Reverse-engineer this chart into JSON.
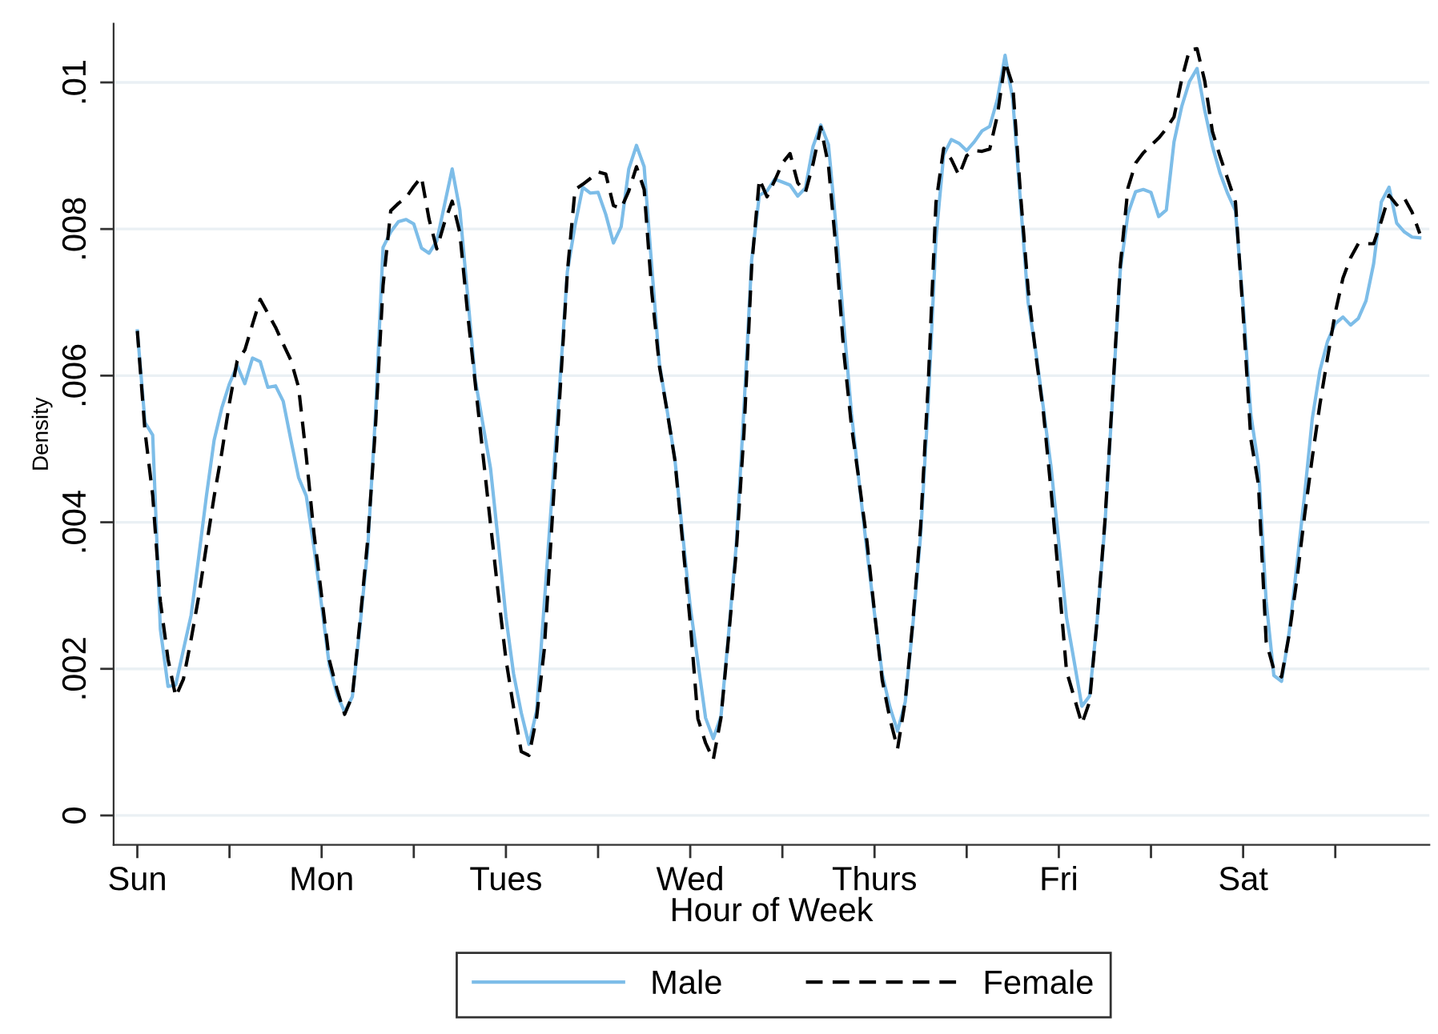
{
  "chart_data": {
    "type": "line",
    "xlabel": "Hour of Week",
    "ylabel": "Density",
    "categories": [
      "Sun",
      null,
      null,
      null,
      null,
      null,
      null,
      null,
      null,
      null,
      null,
      null,
      null,
      null,
      null,
      null,
      null,
      null,
      null,
      null,
      null,
      null,
      null,
      null,
      "Mon",
      null,
      null,
      null,
      null,
      null,
      null,
      null,
      null,
      null,
      null,
      null,
      null,
      null,
      null,
      null,
      null,
      null,
      null,
      null,
      null,
      null,
      null,
      null,
      "Tues",
      null,
      null,
      null,
      null,
      null,
      null,
      null,
      null,
      null,
      null,
      null,
      null,
      null,
      null,
      null,
      null,
      null,
      null,
      null,
      null,
      null,
      null,
      null,
      "Wed",
      null,
      null,
      null,
      null,
      null,
      null,
      null,
      null,
      null,
      null,
      null,
      null,
      null,
      null,
      null,
      null,
      null,
      null,
      null,
      null,
      null,
      null,
      null,
      "Thurs",
      null,
      null,
      null,
      null,
      null,
      null,
      null,
      null,
      null,
      null,
      null,
      null,
      null,
      null,
      null,
      null,
      null,
      null,
      null,
      null,
      null,
      null,
      null,
      "Fri",
      null,
      null,
      null,
      null,
      null,
      null,
      null,
      null,
      null,
      null,
      null,
      null,
      null,
      null,
      null,
      null,
      null,
      null,
      null,
      null,
      null,
      null,
      null,
      "Sat",
      null,
      null,
      null,
      null,
      null,
      null,
      null,
      null,
      null,
      null,
      null,
      null,
      null,
      null,
      null,
      null,
      null,
      null,
      null,
      null,
      null,
      null,
      null
    ],
    "ylim": [
      -0.0004,
      0.0108
    ],
    "yticks": [
      {
        "value": 0,
        "label": "0"
      },
      {
        "value": 0.002,
        "label": ".002"
      },
      {
        "value": 0.004,
        "label": ".004"
      },
      {
        "value": 0.006,
        "label": ".006"
      },
      {
        "value": 0.008,
        "label": ".008"
      },
      {
        "value": 0.01,
        "label": ".01"
      }
    ],
    "grid": "y",
    "legend": "bottom",
    "marker": "none",
    "series": [
      {
        "name": "Male",
        "color": "#7dbde8",
        "line_style": "solid",
        "values": [
          0.00661,
          0.00536,
          0.00519,
          0.00254,
          0.00176,
          0.00178,
          0.00226,
          0.00273,
          0.00353,
          0.00436,
          0.00512,
          0.00556,
          0.00589,
          0.00614,
          0.00589,
          0.00624,
          0.00619,
          0.00584,
          0.00586,
          0.00565,
          0.00512,
          0.00461,
          0.00436,
          0.00366,
          0.00286,
          0.00205,
          0.00165,
          0.00141,
          0.00162,
          0.00259,
          0.00364,
          0.00544,
          0.00775,
          0.00796,
          0.0081,
          0.00813,
          0.00807,
          0.00774,
          0.00767,
          0.00784,
          0.00833,
          0.00882,
          0.00826,
          0.00711,
          0.00595,
          0.00534,
          0.00473,
          0.00374,
          0.00271,
          0.00193,
          0.0014,
          0.00097,
          0.00143,
          0.0029,
          0.00437,
          0.00587,
          0.00742,
          0.00805,
          0.00857,
          0.00849,
          0.0085,
          0.0082,
          0.00781,
          0.00803,
          0.00882,
          0.00914,
          0.00885,
          0.00747,
          0.00615,
          0.00552,
          0.00486,
          0.00385,
          0.00285,
          0.00209,
          0.00133,
          0.00105,
          0.00135,
          0.00248,
          0.0037,
          0.00556,
          0.00758,
          0.00846,
          0.00852,
          0.00868,
          0.00864,
          0.0086,
          0.00845,
          0.00856,
          0.00913,
          0.00942,
          0.00915,
          0.00802,
          0.00669,
          0.00548,
          0.00454,
          0.00362,
          0.00275,
          0.00193,
          0.00148,
          0.00115,
          0.00155,
          0.00261,
          0.00382,
          0.00564,
          0.00787,
          0.00901,
          0.00922,
          0.00917,
          0.00907,
          0.00919,
          0.00934,
          0.0094,
          0.00977,
          0.01037,
          0.00977,
          0.00838,
          0.007,
          0.00633,
          0.00555,
          0.00474,
          0.00372,
          0.0027,
          0.0021,
          0.00149,
          0.00163,
          0.00267,
          0.00396,
          0.0057,
          0.00743,
          0.00821,
          0.00851,
          0.00854,
          0.0085,
          0.00817,
          0.00826,
          0.00919,
          0.00967,
          0.01001,
          0.01019,
          0.00962,
          0.00913,
          0.00876,
          0.00848,
          0.00825,
          0.00697,
          0.00547,
          0.00477,
          0.00292,
          0.00191,
          0.00183,
          0.0025,
          0.00342,
          0.00437,
          0.00541,
          0.00607,
          0.00647,
          0.00671,
          0.0068,
          0.00669,
          0.00678,
          0.00702,
          0.00753,
          0.00837,
          0.00857,
          0.00808,
          0.00796,
          0.00789,
          0.00788
        ]
      },
      {
        "name": "Female",
        "color": "#000000",
        "line_style": "dashed",
        "values": [
          0.00661,
          0.00524,
          0.00437,
          0.00292,
          0.00213,
          0.00162,
          0.00186,
          0.0024,
          0.00299,
          0.00368,
          0.00435,
          0.00495,
          0.00563,
          0.0062,
          0.00635,
          0.0067,
          0.00704,
          0.00685,
          0.00666,
          0.00643,
          0.00621,
          0.00584,
          0.0049,
          0.00385,
          0.00299,
          0.00212,
          0.00172,
          0.00138,
          0.00163,
          0.00265,
          0.00376,
          0.00528,
          0.00723,
          0.00825,
          0.00835,
          0.00843,
          0.00858,
          0.00871,
          0.00813,
          0.00773,
          0.00809,
          0.00838,
          0.00795,
          0.00686,
          0.0059,
          0.00493,
          0.00397,
          0.00302,
          0.00213,
          0.00147,
          0.00087,
          0.00082,
          0.00134,
          0.00227,
          0.00399,
          0.0057,
          0.00741,
          0.00854,
          0.00861,
          0.00869,
          0.00878,
          0.00875,
          0.00832,
          0.00828,
          0.00852,
          0.00885,
          0.00854,
          0.00713,
          0.00612,
          0.00551,
          0.00485,
          0.00374,
          0.00263,
          0.00132,
          0.00099,
          0.00076,
          0.00133,
          0.00244,
          0.00361,
          0.00522,
          0.00749,
          0.00868,
          0.00844,
          0.00866,
          0.0089,
          0.00903,
          0.00863,
          0.0085,
          0.00889,
          0.00939,
          0.00887,
          0.00771,
          0.00632,
          0.00531,
          0.00455,
          0.00375,
          0.00277,
          0.00185,
          0.00132,
          0.00091,
          0.00156,
          0.00266,
          0.00394,
          0.00591,
          0.00836,
          0.0091,
          0.00895,
          0.00873,
          0.009,
          0.00907,
          0.00906,
          0.00909,
          0.00955,
          0.01028,
          0.00996,
          0.00849,
          0.00718,
          0.00629,
          0.00549,
          0.00442,
          0.00321,
          0.00197,
          0.00161,
          0.00125,
          0.00155,
          0.00268,
          0.00401,
          0.00575,
          0.0075,
          0.00856,
          0.0089,
          0.00904,
          0.00914,
          0.00924,
          0.00937,
          0.00953,
          0.01004,
          0.01044,
          0.01046,
          0.01002,
          0.00933,
          0.00899,
          0.00868,
          0.00837,
          0.00684,
          0.00514,
          0.00451,
          0.00237,
          0.00199,
          0.00189,
          0.00247,
          0.00322,
          0.00409,
          0.00488,
          0.00561,
          0.00625,
          0.00686,
          0.00733,
          0.00761,
          0.0078,
          0.0078,
          0.0078,
          0.00811,
          0.00846,
          0.00833,
          0.00842,
          0.00823,
          0.00794
        ]
      }
    ]
  }
}
